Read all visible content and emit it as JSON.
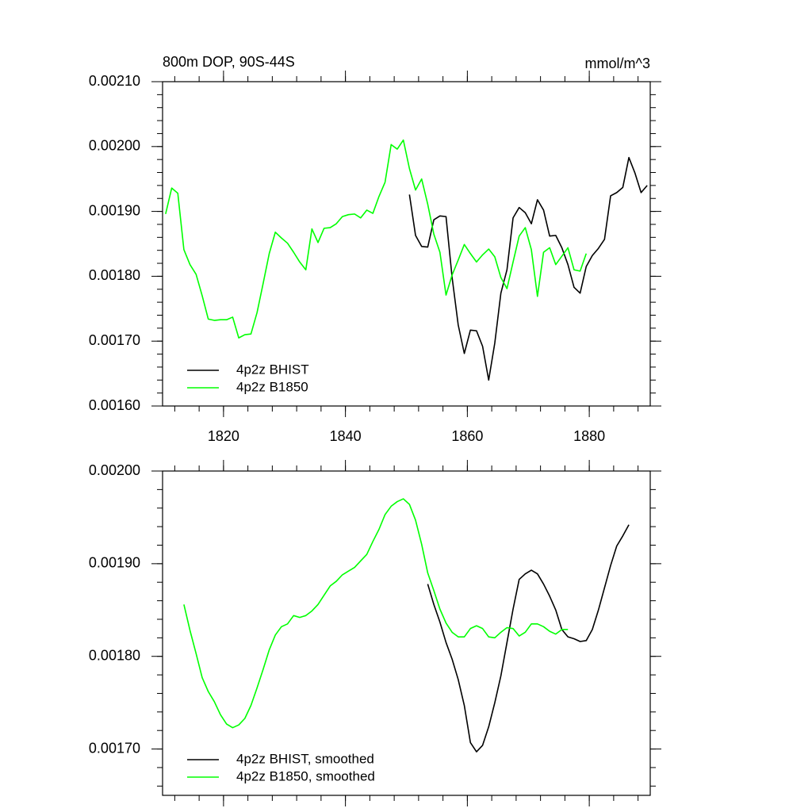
{
  "chart_data": [
    {
      "type": "line",
      "title": "800m DOP, 90S-44S",
      "right_title": "mmol/m^3",
      "x": [
        1810.5,
        1811.5,
        1812.5,
        1813.5,
        1814.5,
        1815.5,
        1816.5,
        1817.5,
        1818.5,
        1819.5,
        1820.5,
        1821.5,
        1822.5,
        1823.5,
        1824.5,
        1825.5,
        1826.5,
        1827.5,
        1828.5,
        1829.5,
        1830.5,
        1831.5,
        1832.5,
        1833.5,
        1834.5,
        1835.5,
        1836.5,
        1837.5,
        1838.5,
        1839.5,
        1840.5,
        1841.5,
        1842.5,
        1843.5,
        1844.5,
        1845.5,
        1846.5,
        1847.5,
        1848.5,
        1849.5,
        1850.5,
        1851.5,
        1852.5,
        1853.5,
        1854.5,
        1855.5,
        1856.5,
        1857.5,
        1858.5,
        1859.5,
        1860.5,
        1861.5,
        1862.5,
        1863.5,
        1864.5,
        1865.5,
        1866.5,
        1867.5,
        1868.5,
        1869.5,
        1870.5,
        1871.5,
        1872.5,
        1873.5,
        1874.5,
        1875.5,
        1876.5,
        1877.5,
        1878.5,
        1879.5,
        1880.5,
        1881.5,
        1882.5,
        1883.5,
        1884.5,
        1885.5,
        1886.5,
        1887.5,
        1888.5,
        1889.5
      ],
      "series": [
        {
          "name": "4p2z BHIST",
          "color": "#000000",
          "values": [
            null,
            null,
            null,
            null,
            null,
            null,
            null,
            null,
            null,
            null,
            null,
            null,
            null,
            null,
            null,
            null,
            null,
            null,
            null,
            null,
            null,
            null,
            null,
            null,
            null,
            null,
            null,
            null,
            null,
            null,
            null,
            null,
            null,
            null,
            null,
            null,
            null,
            null,
            null,
            null,
            0.001926,
            0.001863,
            0.001846,
            0.001845,
            0.001887,
            0.001893,
            0.001892,
            0.001798,
            0.001725,
            0.001681,
            0.001717,
            0.001716,
            0.001692,
            0.00164,
            0.001697,
            0.001774,
            0.00181,
            0.00189,
            0.001906,
            0.001898,
            0.001881,
            0.001918,
            0.001902,
            0.001862,
            0.001863,
            0.001844,
            0.001818,
            0.001783,
            0.001774,
            0.001815,
            0.001832,
            0.001843,
            0.001857,
            0.001924,
            0.001929,
            0.001937,
            0.001983,
            0.001959,
            0.001929,
            0.00194
          ]
        },
        {
          "name": "4p2z B1850",
          "color": "#00ff00",
          "values": [
            0.001896,
            0.001936,
            0.001928,
            0.001841,
            0.001818,
            0.001803,
            0.00177,
            0.001734,
            0.001732,
            0.001733,
            0.001733,
            0.001737,
            0.001705,
            0.00171,
            0.001711,
            0.001744,
            0.001789,
            0.001835,
            0.001868,
            0.001859,
            0.001851,
            0.001837,
            0.001822,
            0.00181,
            0.001873,
            0.001852,
            0.001874,
            0.001875,
            0.001881,
            0.001892,
            0.001895,
            0.001896,
            0.00189,
            0.001902,
            0.001897,
            0.001923,
            0.001945,
            0.002003,
            0.001996,
            0.00201,
            0.001966,
            0.001933,
            0.00195,
            0.001911,
            0.001865,
            0.001837,
            0.001771,
            0.001802,
            0.001825,
            0.001849,
            0.001835,
            0.001822,
            0.001833,
            0.001842,
            0.00183,
            0.001798,
            0.001781,
            0.001822,
            0.001862,
            0.001875,
            0.001841,
            0.001769,
            0.001837,
            0.001844,
            0.001818,
            0.001831,
            0.001844,
            0.00181,
            0.001808,
            0.001835,
            null,
            null,
            null,
            null,
            null,
            null,
            null,
            null,
            null,
            null
          ]
        }
      ],
      "xlim": [
        1810,
        1890
      ],
      "xticks": [
        1820,
        1840,
        1860,
        1880
      ],
      "ylim": [
        0.0016,
        0.0021
      ],
      "yticks": [
        {
          "value": 0.0016,
          "label": "0.00160"
        },
        {
          "value": 0.0017,
          "label": "0.00170"
        },
        {
          "value": 0.0018,
          "label": "0.00180"
        },
        {
          "value": 0.0019,
          "label": "0.00190"
        },
        {
          "value": 0.002,
          "label": "0.00200"
        },
        {
          "value": 0.0021,
          "label": "0.00210"
        }
      ],
      "legend": "lower left"
    },
    {
      "type": "line",
      "x": [
        1810.5,
        1811.5,
        1812.5,
        1813.5,
        1814.5,
        1815.5,
        1816.5,
        1817.5,
        1818.5,
        1819.5,
        1820.5,
        1821.5,
        1822.5,
        1823.5,
        1824.5,
        1825.5,
        1826.5,
        1827.5,
        1828.5,
        1829.5,
        1830.5,
        1831.5,
        1832.5,
        1833.5,
        1834.5,
        1835.5,
        1836.5,
        1837.5,
        1838.5,
        1839.5,
        1840.5,
        1841.5,
        1842.5,
        1843.5,
        1844.5,
        1845.5,
        1846.5,
        1847.5,
        1848.5,
        1849.5,
        1850.5,
        1851.5,
        1852.5,
        1853.5,
        1854.5,
        1855.5,
        1856.5,
        1857.5,
        1858.5,
        1859.5,
        1860.5,
        1861.5,
        1862.5,
        1863.5,
        1864.5,
        1865.5,
        1866.5,
        1867.5,
        1868.5,
        1869.5,
        1870.5,
        1871.5,
        1872.5,
        1873.5,
        1874.5,
        1875.5,
        1876.5,
        1877.5,
        1878.5,
        1879.5,
        1880.5,
        1881.5,
        1882.5,
        1883.5,
        1884.5,
        1885.5,
        1886.5,
        1887.5,
        1888.5,
        1889.5
      ],
      "series": [
        {
          "name": "4p2z BHIST, smoothed",
          "color": "#000000",
          "values": [
            null,
            null,
            null,
            null,
            null,
            null,
            null,
            null,
            null,
            null,
            null,
            null,
            null,
            null,
            null,
            null,
            null,
            null,
            null,
            null,
            null,
            null,
            null,
            null,
            null,
            null,
            null,
            null,
            null,
            null,
            null,
            null,
            null,
            null,
            null,
            null,
            null,
            null,
            null,
            null,
            null,
            null,
            null,
            0.001878,
            0.001856,
            0.001837,
            0.001815,
            0.001797,
            0.001775,
            0.001747,
            0.001707,
            0.001697,
            0.001704,
            0.001724,
            0.00175,
            0.001779,
            0.001815,
            0.001851,
            0.001883,
            0.001889,
            0.001893,
            0.001889,
            0.001878,
            0.001865,
            0.00185,
            0.001829,
            0.001821,
            0.001819,
            0.001816,
            0.001817,
            0.001829,
            0.00185,
            0.001874,
            0.001898,
            0.001919,
            0.00193,
            0.001942,
            null,
            null,
            null
          ]
        },
        {
          "name": "4p2z B1850, smoothed",
          "color": "#00ff00",
          "values": [
            null,
            null,
            null,
            0.001856,
            0.001828,
            0.001803,
            0.001777,
            0.001762,
            0.001751,
            0.001737,
            0.001727,
            0.001723,
            0.001726,
            0.001733,
            0.001747,
            0.001766,
            0.001786,
            0.001807,
            0.001823,
            0.001832,
            0.001835,
            0.001844,
            0.001842,
            0.001844,
            0.001849,
            0.001856,
            0.001866,
            0.001876,
            0.001881,
            0.001888,
            0.001892,
            0.001896,
            0.001903,
            0.00191,
            0.001924,
            0.001937,
            0.001953,
            0.001962,
            0.001967,
            0.00197,
            0.001964,
            0.001947,
            0.001921,
            0.00189,
            0.001871,
            0.001851,
            0.001836,
            0.001826,
            0.001821,
            0.001821,
            0.00183,
            0.001833,
            0.00183,
            0.001821,
            0.00182,
            0.001826,
            0.001831,
            0.00183,
            0.001822,
            0.001826,
            0.001835,
            0.001835,
            0.001832,
            0.001827,
            0.001824,
            0.001829,
            0.001829,
            null,
            null,
            null,
            null,
            null,
            null,
            null,
            null,
            null,
            null,
            null,
            null,
            null
          ]
        }
      ],
      "xlim": [
        1810,
        1890
      ],
      "xticks": [
        1820,
        1840,
        1860,
        1880
      ],
      "ylim": [
        0.00165,
        0.002
      ],
      "yticks": [
        {
          "value": 0.0017,
          "label": "0.00170"
        },
        {
          "value": 0.0018,
          "label": "0.00180"
        },
        {
          "value": 0.0019,
          "label": "0.00190"
        },
        {
          "value": 0.002,
          "label": "0.00200"
        }
      ],
      "legend": "lower left"
    }
  ]
}
